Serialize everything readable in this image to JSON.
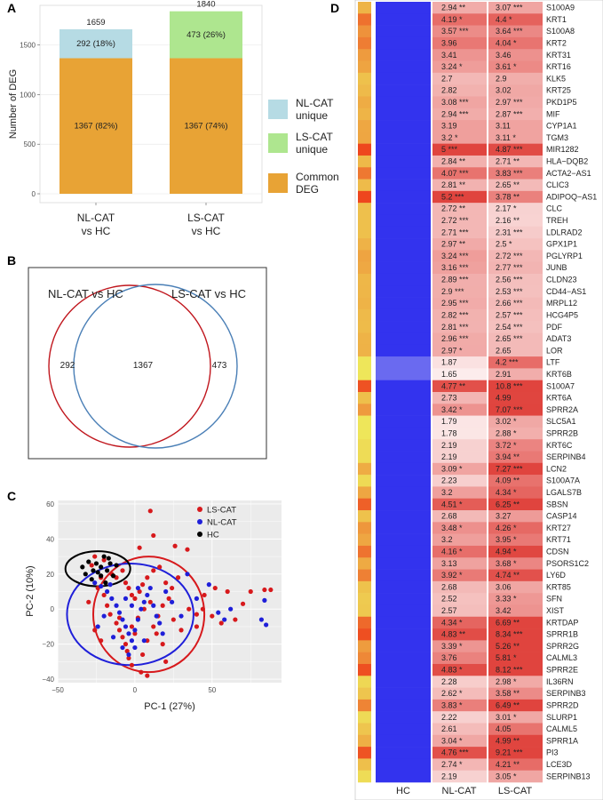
{
  "panels": {
    "a": "A",
    "b": "B",
    "c": "C",
    "d": "D"
  },
  "chart_data": [
    {
      "panel": "A",
      "type": "bar",
      "categories": [
        "NL-CAT\nvs HC",
        "LS-CAT\nvs HC"
      ],
      "series": [
        {
          "name": "Common\nDEG",
          "values": [
            1367,
            1367
          ],
          "labels": [
            "1367 (82%)",
            "1367 (74%)"
          ]
        },
        {
          "name": "NL-CAT\nunique",
          "values": [
            292,
            0
          ],
          "labels": [
            "292 (18%)",
            ""
          ]
        },
        {
          "name": "LS-CAT\nunique",
          "values": [
            0,
            473
          ],
          "labels": [
            "",
            "473 (26%)"
          ]
        }
      ],
      "totals": [
        "1659",
        "1840"
      ],
      "ylabel": "Number of DEG",
      "ylim": [
        0,
        1900
      ],
      "yticks": [
        "0",
        "500",
        "1000",
        "1500"
      ],
      "legend_position": "right",
      "colors": {
        "Common\nDEG": "#e8a335",
        "NL-CAT\nunique": "#b6dbe4",
        "LS-CAT\nunique": "#aee68f"
      }
    },
    {
      "panel": "B",
      "type": "venn",
      "sets": [
        {
          "name": "NL-CAT vs HC",
          "color": "#c0161d",
          "only": "292"
        },
        {
          "name": "LS-CAT vs HC",
          "color": "#4a7fb6",
          "only": "473"
        }
      ],
      "intersection": "1367"
    },
    {
      "panel": "C",
      "type": "scatter",
      "xlabel": "PC-1 (27%)",
      "ylabel": "PC-2 (10%)",
      "xlim": [
        -50,
        95
      ],
      "ylim": [
        -42,
        62
      ],
      "xticks": [
        "−50",
        "0",
        "50"
      ],
      "yticks": [
        "−40",
        "−20",
        "0",
        "20",
        "40",
        "60"
      ],
      "legend": [
        {
          "name": "LS-CAT",
          "color": "#d7191c"
        },
        {
          "name": "NL-CAT",
          "color": "#1f1fd9"
        },
        {
          "name": "HC",
          "color": "#000000"
        }
      ],
      "series": [
        {
          "name": "LS-CAT",
          "color": "#d7191c",
          "points": [
            [
              -28,
              25
            ],
            [
              -20,
              28
            ],
            [
              -22,
              18
            ],
            [
              -24,
              12
            ],
            [
              -20,
              8
            ],
            [
              -12,
              18
            ],
            [
              -8,
              22
            ],
            [
              -6,
              15
            ],
            [
              -4,
              12
            ],
            [
              -2,
              8
            ],
            [
              0,
              6
            ],
            [
              3,
              10
            ],
            [
              5,
              14
            ],
            [
              8,
              18
            ],
            [
              12,
              22
            ],
            [
              16,
              24
            ],
            [
              20,
              15
            ],
            [
              24,
              12
            ],
            [
              28,
              18
            ],
            [
              -18,
              2
            ],
            [
              -16,
              -3
            ],
            [
              -12,
              -8
            ],
            [
              -10,
              -12
            ],
            [
              -8,
              -16
            ],
            [
              -6,
              -20
            ],
            [
              -5,
              -24
            ],
            [
              -4,
              -28
            ],
            [
              -2,
              -32
            ],
            [
              5,
              -26
            ],
            [
              8,
              -18
            ],
            [
              12,
              -10
            ],
            [
              15,
              -4
            ],
            [
              18,
              2
            ],
            [
              22,
              6
            ],
            [
              25,
              -6
            ],
            [
              30,
              -12
            ],
            [
              35,
              0
            ],
            [
              40,
              -10
            ],
            [
              45,
              8
            ],
            [
              50,
              -4
            ],
            [
              56,
              -8
            ],
            [
              60,
              10
            ],
            [
              65,
              -6
            ],
            [
              70,
              3
            ],
            [
              75,
              10
            ],
            [
              88,
              11
            ],
            [
              84,
              11
            ],
            [
              10,
              56
            ],
            [
              12,
              42
            ],
            [
              40,
              -3
            ],
            [
              -22,
              -18
            ],
            [
              -26,
              -12
            ],
            [
              -15,
              20
            ],
            [
              -2,
              -10
            ],
            [
              2,
              -5
            ],
            [
              6,
              0
            ],
            [
              10,
              4
            ],
            [
              14,
              -14
            ],
            [
              18,
              -20
            ],
            [
              -30,
              4
            ],
            [
              4,
              -36
            ],
            [
              8,
              -38
            ],
            [
              20,
              -30
            ],
            [
              -26,
              30
            ],
            [
              3,
              35
            ],
            [
              -10,
              -5
            ],
            [
              0,
              -14
            ],
            [
              26,
              36
            ],
            [
              34,
              34
            ],
            [
              52,
              12
            ],
            [
              44,
              0
            ]
          ]
        },
        {
          "name": "NL-CAT",
          "color": "#1f1fd9",
          "points": [
            [
              -26,
              15
            ],
            [
              -22,
              13
            ],
            [
              -18,
              10
            ],
            [
              -15,
              6
            ],
            [
              -12,
              2
            ],
            [
              -10,
              -2
            ],
            [
              -8,
              -6
            ],
            [
              -6,
              -10
            ],
            [
              -4,
              -14
            ],
            [
              -2,
              -18
            ],
            [
              0,
              -12
            ],
            [
              2,
              -6
            ],
            [
              4,
              0
            ],
            [
              6,
              4
            ],
            [
              8,
              8
            ],
            [
              10,
              12
            ],
            [
              12,
              2
            ],
            [
              14,
              -4
            ],
            [
              16,
              -8
            ],
            [
              18,
              -14
            ],
            [
              -20,
              -4
            ],
            [
              -24,
              -10
            ],
            [
              -14,
              -16
            ],
            [
              -8,
              -22
            ],
            [
              -4,
              -26
            ],
            [
              0,
              -22
            ],
            [
              6,
              -18
            ],
            [
              20,
              10
            ],
            [
              24,
              4
            ],
            [
              30,
              -4
            ],
            [
              34,
              20
            ],
            [
              40,
              6
            ],
            [
              48,
              14
            ],
            [
              54,
              -2
            ],
            [
              58,
              -6
            ],
            [
              62,
              0
            ],
            [
              84,
              5
            ],
            [
              85,
              -9
            ],
            [
              82,
              -6
            ],
            [
              -16,
              14
            ],
            [
              -6,
              6
            ],
            [
              -2,
              2
            ],
            [
              2,
              12
            ]
          ]
        },
        {
          "name": "HC",
          "color": "#000000",
          "points": [
            [
              -34,
              24
            ],
            [
              -30,
              27
            ],
            [
              -27,
              22
            ],
            [
              -25,
              26
            ],
            [
              -22,
              24
            ],
            [
              -20,
              30
            ],
            [
              -18,
              22
            ],
            [
              -16,
              26
            ],
            [
              -14,
              19
            ],
            [
              -28,
              17
            ],
            [
              -32,
              20
            ],
            [
              -22,
              19
            ],
            [
              -19,
              15
            ],
            [
              -24,
              21
            ],
            [
              -17,
              29
            ],
            [
              -12,
              25
            ]
          ]
        }
      ]
    },
    {
      "panel": "D",
      "type": "heatmap",
      "columns": [
        "HC",
        "NL-CAT",
        "LS-CAT"
      ],
      "rows": [
        {
          "gene": "S100A9",
          "nl": "2.94 **",
          "ls": "3.07 ***"
        },
        {
          "gene": "KRT1",
          "nl": "4.19 *",
          "ls": "4.4 *"
        },
        {
          "gene": "S100A8",
          "nl": "3.57 ***",
          "ls": "3.64 ***"
        },
        {
          "gene": "KRT2",
          "nl": "3.96",
          "ls": "4.04 *"
        },
        {
          "gene": "KRT31",
          "nl": "3.41",
          "ls": "3.46"
        },
        {
          "gene": "KRT16",
          "nl": "3.24 *",
          "ls": "3.61 *"
        },
        {
          "gene": "KLK5",
          "nl": "2.7",
          "ls": "2.9"
        },
        {
          "gene": "KRT25",
          "nl": "2.82",
          "ls": "3.02"
        },
        {
          "gene": "PKD1P5",
          "nl": "3.08 ***",
          "ls": "2.97 ***"
        },
        {
          "gene": "MIF",
          "nl": "2.94 ***",
          "ls": "2.87 ***"
        },
        {
          "gene": "CYP1A1",
          "nl": "3.19",
          "ls": "3.11"
        },
        {
          "gene": "TGM3",
          "nl": "3.2 *",
          "ls": "3.11 *"
        },
        {
          "gene": "MIR1282",
          "nl": "5 ***",
          "ls": "4.87 ***"
        },
        {
          "gene": "HLA−DQB2",
          "nl": "2.84 **",
          "ls": "2.71 **"
        },
        {
          "gene": "ACTA2−AS1",
          "nl": "4.07 ***",
          "ls": "3.83 ***"
        },
        {
          "gene": "CLIC3",
          "nl": "2.81 **",
          "ls": "2.65 **"
        },
        {
          "gene": "ADIPOQ−AS1",
          "nl": "5.2 ***",
          "ls": "3.78 **"
        },
        {
          "gene": "CLC",
          "nl": "2.72 **",
          "ls": "2.17 *"
        },
        {
          "gene": "TREH",
          "nl": "2.72 ***",
          "ls": "2.16 **"
        },
        {
          "gene": "LDLRAD2",
          "nl": "2.71 ***",
          "ls": "2.31 ***"
        },
        {
          "gene": "GPX1P1",
          "nl": "2.97 **",
          "ls": "2.5 *"
        },
        {
          "gene": "PGLYRP1",
          "nl": "3.24 ***",
          "ls": "2.72 ***"
        },
        {
          "gene": "JUNB",
          "nl": "3.16 ***",
          "ls": "2.77 ***"
        },
        {
          "gene": "CLDN23",
          "nl": "2.89 ***",
          "ls": "2.56 ***"
        },
        {
          "gene": "CD44−AS1",
          "nl": "2.9 ***",
          "ls": "2.53 ***"
        },
        {
          "gene": "MRPL12",
          "nl": "2.95 ***",
          "ls": "2.66 ***"
        },
        {
          "gene": "HCG4P5",
          "nl": "2.82 ***",
          "ls": "2.57 ***"
        },
        {
          "gene": "PDF",
          "nl": "2.81 ***",
          "ls": "2.54 ***"
        },
        {
          "gene": "ADAT3",
          "nl": "2.96 ***",
          "ls": "2.65 ***"
        },
        {
          "gene": "LOR",
          "nl": "2.97 *",
          "ls": "2.65"
        },
        {
          "gene": "LTF",
          "nl": "1.87",
          "ls": "4.2 ***"
        },
        {
          "gene": "KRT6B",
          "nl": "1.65",
          "ls": "2.91"
        },
        {
          "gene": "S100A7",
          "nl": "4.77 **",
          "ls": "10.8 ***"
        },
        {
          "gene": "KRT6A",
          "nl": "2.73",
          "ls": "4.99"
        },
        {
          "gene": "SPRR2A",
          "nl": "3.42 *",
          "ls": "7.07 ***"
        },
        {
          "gene": "SLC5A1",
          "nl": "1.79",
          "ls": "3.02 *"
        },
        {
          "gene": "SPRR2B",
          "nl": "1.78",
          "ls": "2.88 *"
        },
        {
          "gene": "KRT6C",
          "nl": "2.19",
          "ls": "3.72 *"
        },
        {
          "gene": "SERPINB4",
          "nl": "2.19",
          "ls": "3.94 **"
        },
        {
          "gene": "LCN2",
          "nl": "3.09 *",
          "ls": "7.27 ***"
        },
        {
          "gene": "S100A7A",
          "nl": "2.23",
          "ls": "4.09 **"
        },
        {
          "gene": "LGALS7B",
          "nl": "3.2",
          "ls": "4.34 *"
        },
        {
          "gene": "SBSN",
          "nl": "4.51 *",
          "ls": "6.25 **"
        },
        {
          "gene": "CASP14",
          "nl": "2.68",
          "ls": "3.27"
        },
        {
          "gene": "KRT27",
          "nl": "3.48 *",
          "ls": "4.26 *"
        },
        {
          "gene": "KRT71",
          "nl": "3.2",
          "ls": "3.95 *"
        },
        {
          "gene": "CDSN",
          "nl": "4.16 *",
          "ls": "4.94 *"
        },
        {
          "gene": "PSORS1C2",
          "nl": "3.13",
          "ls": "3.68 *"
        },
        {
          "gene": "LY6D",
          "nl": "3.92 *",
          "ls": "4.74 **"
        },
        {
          "gene": "KRT85",
          "nl": "2.68",
          "ls": "3.06"
        },
        {
          "gene": "SFN",
          "nl": "2.52",
          "ls": "3.33 *"
        },
        {
          "gene": "XIST",
          "nl": "2.57",
          "ls": "3.42"
        },
        {
          "gene": "KRTDAP",
          "nl": "4.34 *",
          "ls": "6.69 **"
        },
        {
          "gene": "SPRR1B",
          "nl": "4.83 **",
          "ls": "8.34 ***"
        },
        {
          "gene": "SPRR2G",
          "nl": "3.39 *",
          "ls": "5.26 **"
        },
        {
          "gene": "CALML3",
          "nl": "3.76",
          "ls": "5.81 *"
        },
        {
          "gene": "SPRR2E",
          "nl": "4.83 *",
          "ls": "8.12 ***"
        },
        {
          "gene": "IL36RN",
          "nl": "2.28",
          "ls": "2.98 *"
        },
        {
          "gene": "SERPINB3",
          "nl": "2.62 *",
          "ls": "3.58 **"
        },
        {
          "gene": "SPRR2D",
          "nl": "3.83 *",
          "ls": "6.49 **"
        },
        {
          "gene": "SLURP1",
          "nl": "2.22",
          "ls": "3.01 *"
        },
        {
          "gene": "CALML5",
          "nl": "2.61",
          "ls": "4.05"
        },
        {
          "gene": "SPRR1A",
          "nl": "3.04 *",
          "ls": "4.99 **"
        },
        {
          "gene": "PI3",
          "nl": "4.76 ***",
          "ls": "9.21 ***"
        },
        {
          "gene": "LCE3D",
          "nl": "2.74 *",
          "ls": "4.21 **"
        },
        {
          "gene": "SERPINB13",
          "nl": "2.19",
          "ls": "3.05 *"
        }
      ],
      "colors": {
        "hc": "#3333ee",
        "low": "#fdf4f4",
        "high": "#e0443e"
      }
    }
  ]
}
